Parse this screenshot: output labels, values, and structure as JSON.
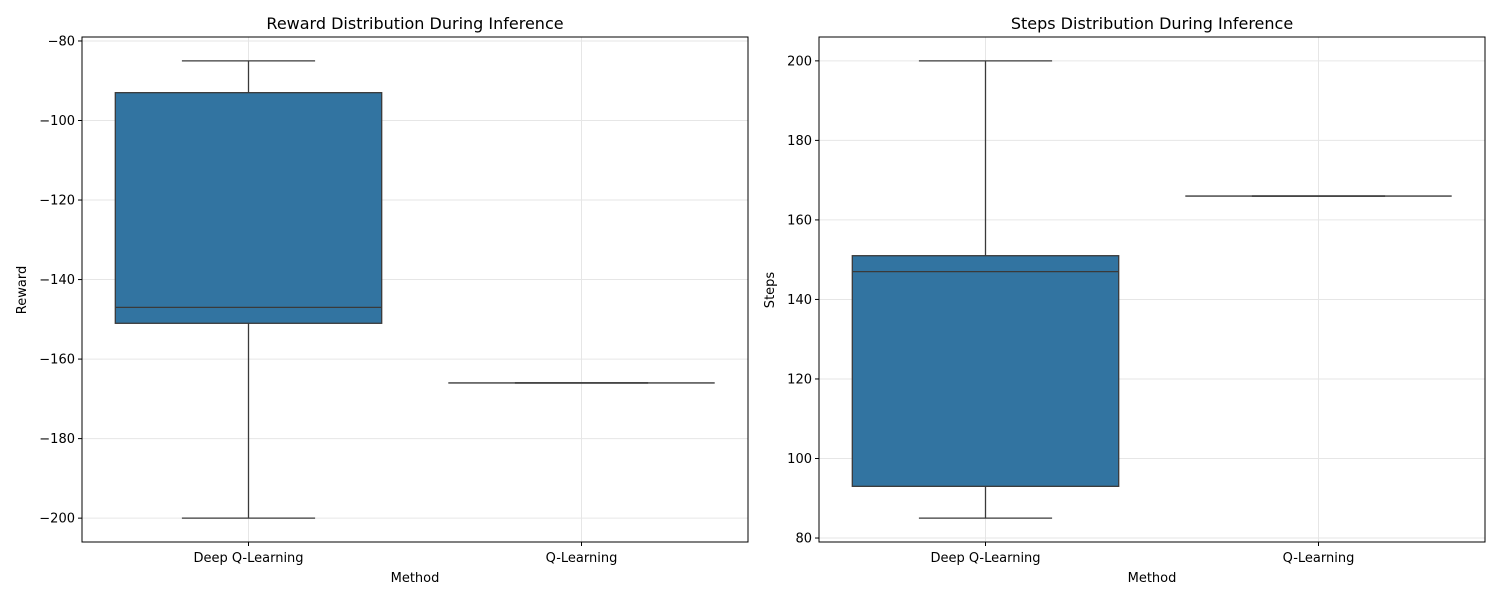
{
  "chart_data": [
    {
      "type": "box",
      "title": "Reward Distribution During Inference",
      "xlabel": "Method",
      "ylabel": "Reward",
      "categories": [
        "Deep Q-Learning",
        "Q-Learning"
      ],
      "ylim": [
        -206,
        -79
      ],
      "yticks": [
        -200,
        -180,
        -160,
        -140,
        -120,
        -100,
        -80
      ],
      "grid": true,
      "boxes": [
        {
          "category": "Deep Q-Learning",
          "min": -200,
          "q1": -151,
          "median": -147,
          "q3": -93,
          "max": -85
        },
        {
          "category": "Q-Learning",
          "min": -166,
          "q1": -166,
          "median": -166,
          "q3": -166,
          "max": -166
        }
      ],
      "box_color": "#3274a1"
    },
    {
      "type": "box",
      "title": "Steps Distribution During Inference",
      "xlabel": "Method",
      "ylabel": "Steps",
      "categories": [
        "Deep Q-Learning",
        "Q-Learning"
      ],
      "ylim": [
        79,
        206
      ],
      "yticks": [
        80,
        100,
        120,
        140,
        160,
        180,
        200
      ],
      "grid": true,
      "boxes": [
        {
          "category": "Deep Q-Learning",
          "min": 85,
          "q1": 93,
          "median": 147,
          "q3": 151,
          "max": 200
        },
        {
          "category": "Q-Learning",
          "min": 166,
          "q1": 166,
          "median": 166,
          "q3": 166,
          "max": 166
        }
      ],
      "box_color": "#3274a1"
    }
  ]
}
